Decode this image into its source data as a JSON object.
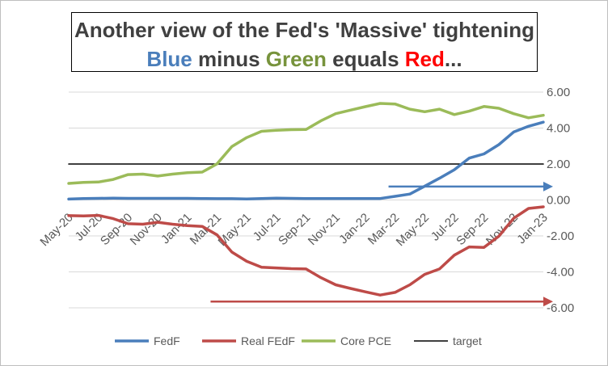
{
  "title": {
    "line1": "Another view of the Fed's 'Massive' tightening",
    "line2": [
      {
        "text": "Blue",
        "color": "#4a7ebb"
      },
      {
        "text": " minus ",
        "color": "#404040"
      },
      {
        "text": "Green",
        "color": "#77933c"
      },
      {
        "text": " equals ",
        "color": "#404040"
      },
      {
        "text": "Red",
        "color": "#ff0000"
      },
      {
        "text": "...",
        "color": "#404040"
      }
    ]
  },
  "chart_data": {
    "type": "line",
    "x": [
      "May-20",
      "Jun-20",
      "Jul-20",
      "Aug-20",
      "Sep-20",
      "Oct-20",
      "Nov-20",
      "Dec-20",
      "Jan-21",
      "Feb-21",
      "Mar-21",
      "Apr-21",
      "May-21",
      "Jun-21",
      "Jul-21",
      "Aug-21",
      "Sep-21",
      "Oct-21",
      "Nov-21",
      "Dec-21",
      "Jan-22",
      "Feb-22",
      "Mar-22",
      "Apr-22",
      "May-22",
      "Jun-22",
      "Jul-22",
      "Aug-22",
      "Sep-22",
      "Oct-22",
      "Nov-22",
      "Dec-22",
      "Jan-23"
    ],
    "x_tick_labels": [
      "May-20",
      "Jul-20",
      "Sep-20",
      "Nov-20",
      "Jan-21",
      "Mar-21",
      "May-21",
      "Jul-21",
      "Sep-21",
      "Nov-21",
      "Jan-22",
      "Mar-22",
      "May-22",
      "Jul-22",
      "Sep-22",
      "Nov-22",
      "Jan-23"
    ],
    "ylim": [
      -6,
      6
    ],
    "yticks": [
      "-6.00",
      "-4.00",
      "-2.00",
      "0.00",
      "2.00",
      "4.00",
      "6.00"
    ],
    "grid": "horizontal",
    "legend_position": "bottom",
    "series": [
      {
        "name": "FedF",
        "color": "#4a7ebb",
        "values": [
          0.05,
          0.08,
          0.09,
          0.1,
          0.09,
          0.09,
          0.09,
          0.09,
          0.09,
          0.08,
          0.07,
          0.07,
          0.06,
          0.08,
          0.1,
          0.09,
          0.08,
          0.08,
          0.08,
          0.08,
          0.08,
          0.08,
          0.2,
          0.33,
          0.77,
          1.21,
          1.68,
          2.33,
          2.56,
          3.08,
          3.78,
          4.1,
          4.33
        ]
      },
      {
        "name": "Real FEdF",
        "color": "#be4b48",
        "values": [
          -0.87,
          -0.89,
          -0.86,
          -1.04,
          -1.32,
          -1.35,
          -1.24,
          -1.35,
          -1.43,
          -1.47,
          -1.94,
          -2.9,
          -3.41,
          -3.74,
          -3.78,
          -3.82,
          -3.84,
          -4.32,
          -4.72,
          -4.92,
          -5.11,
          -5.29,
          -5.14,
          -4.72,
          -4.14,
          -3.84,
          -3.07,
          -2.61,
          -2.64,
          -2.02,
          -1.02,
          -0.47,
          -0.38
        ]
      },
      {
        "name": "Core PCE",
        "color": "#9bbb59",
        "values": [
          0.92,
          0.98,
          1.0,
          1.14,
          1.41,
          1.44,
          1.33,
          1.44,
          1.52,
          1.55,
          2.01,
          2.97,
          3.47,
          3.82,
          3.88,
          3.91,
          3.92,
          4.4,
          4.8,
          5.0,
          5.19,
          5.37,
          5.34,
          5.05,
          4.91,
          5.05,
          4.75,
          4.94,
          5.2,
          5.1,
          4.8,
          4.57,
          4.71
        ]
      },
      {
        "name": "target",
        "color": "#000000",
        "values": [
          2,
          2,
          2,
          2,
          2,
          2,
          2,
          2,
          2,
          2,
          2,
          2,
          2,
          2,
          2,
          2,
          2,
          2,
          2,
          2,
          2,
          2,
          2,
          2,
          2,
          2,
          2,
          2,
          2,
          2,
          2,
          2,
          2
        ]
      }
    ],
    "annotations": [
      {
        "type": "arrow",
        "color": "#4a7ebb",
        "from": {
          "x": "Mar-22",
          "y": 0.75
        },
        "to": {
          "x": "Jan-23",
          "y": 0.75
        }
      },
      {
        "type": "arrow",
        "color": "#be4b48",
        "from": {
          "x": "Mar-21",
          "y": -5.65
        },
        "to": {
          "x": "Jan-23",
          "y": -5.65
        }
      }
    ]
  }
}
